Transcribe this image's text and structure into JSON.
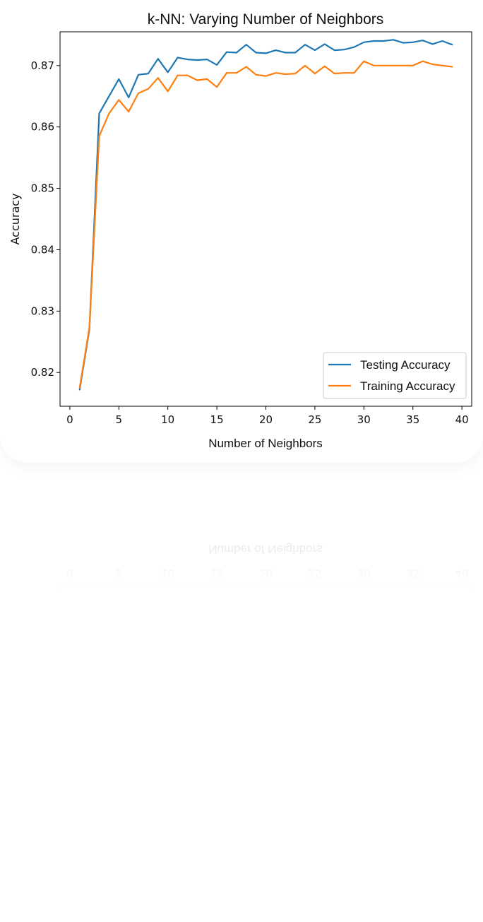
{
  "chart_data": {
    "type": "line",
    "title": "k-NN: Varying Number of Neighbors",
    "xlabel": "Number of Neighbors",
    "ylabel": "Accuracy",
    "xlim": [
      -1,
      41
    ],
    "ylim": [
      0.8145,
      0.8755
    ],
    "xticks": [
      0,
      5,
      10,
      15,
      20,
      25,
      30,
      35,
      40
    ],
    "yticks": [
      0.82,
      0.83,
      0.84,
      0.85,
      0.86,
      0.87
    ],
    "ytick_labels": [
      "0.82",
      "0.83",
      "0.84",
      "0.85",
      "0.86",
      "0.87"
    ],
    "legend_position": "lower-right",
    "grid": false,
    "x": [
      1,
      2,
      3,
      4,
      5,
      6,
      7,
      8,
      9,
      10,
      11,
      12,
      13,
      14,
      15,
      16,
      17,
      18,
      19,
      20,
      21,
      22,
      23,
      24,
      25,
      26,
      27,
      28,
      29,
      30,
      31,
      32,
      33,
      34,
      35,
      36,
      37,
      38,
      39
    ],
    "series": [
      {
        "name": "Testing Accuracy",
        "color": "#1f77b4",
        "values": [
          0.8172,
          0.827,
          0.8622,
          0.865,
          0.8678,
          0.8648,
          0.8685,
          0.8687,
          0.8711,
          0.8689,
          0.8713,
          0.871,
          0.8709,
          0.871,
          0.8701,
          0.8722,
          0.8721,
          0.8734,
          0.8721,
          0.872,
          0.8725,
          0.8721,
          0.8721,
          0.8734,
          0.8725,
          0.8735,
          0.8725,
          0.8726,
          0.873,
          0.8738,
          0.874,
          0.874,
          0.8742,
          0.8737,
          0.8738,
          0.8741,
          0.8735,
          0.874,
          0.8734
        ]
      },
      {
        "name": "Training Accuracy",
        "color": "#ff7f0e",
        "values": [
          0.8175,
          0.8273,
          0.8585,
          0.8622,
          0.8644,
          0.8625,
          0.8655,
          0.8662,
          0.868,
          0.8658,
          0.8684,
          0.8684,
          0.8676,
          0.8678,
          0.8665,
          0.8688,
          0.8688,
          0.8698,
          0.8685,
          0.8683,
          0.8688,
          0.8686,
          0.8687,
          0.87,
          0.8687,
          0.8699,
          0.8687,
          0.8688,
          0.8688,
          0.8707,
          0.87,
          0.87,
          0.87,
          0.87,
          0.87,
          0.8707,
          0.8702,
          0.87,
          0.8698
        ]
      }
    ]
  }
}
